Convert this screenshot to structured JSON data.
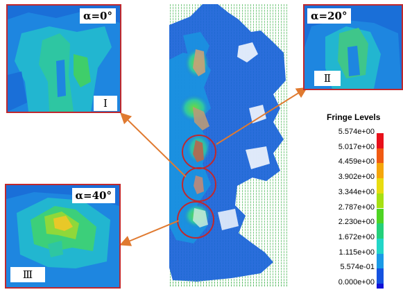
{
  "panels": [
    {
      "alpha": "α=0°",
      "roman": "Ⅰ"
    },
    {
      "alpha": "α=20°",
      "roman": "Ⅱ"
    },
    {
      "alpha": "α=40°",
      "roman": "Ⅲ"
    }
  ],
  "legend": {
    "title": "Fringe Levels",
    "levels": [
      {
        "label": "5.574e+00",
        "color": "#e8101a"
      },
      {
        "label": "5.017e+00",
        "color": "#f05a12"
      },
      {
        "label": "4.459e+00",
        "color": "#f5a60a"
      },
      {
        "label": "3.902e+00",
        "color": "#e8dc10"
      },
      {
        "label": "3.344e+00",
        "color": "#a6e012"
      },
      {
        "label": "2.787e+00",
        "color": "#4ed424"
      },
      {
        "label": "2.230e+00",
        "color": "#24d07a"
      },
      {
        "label": "1.672e+00",
        "color": "#22d6c8"
      },
      {
        "label": "1.115e+00",
        "color": "#1a9ae6"
      },
      {
        "label": "5.574e-01",
        "color": "#1452e0"
      },
      {
        "label": "0.000e+00",
        "color": "#1010d8"
      }
    ]
  },
  "colors": {
    "frame_red": "#c0282d",
    "arrow_orange": "#e07a30",
    "mesh_green": "#2fa84f"
  }
}
